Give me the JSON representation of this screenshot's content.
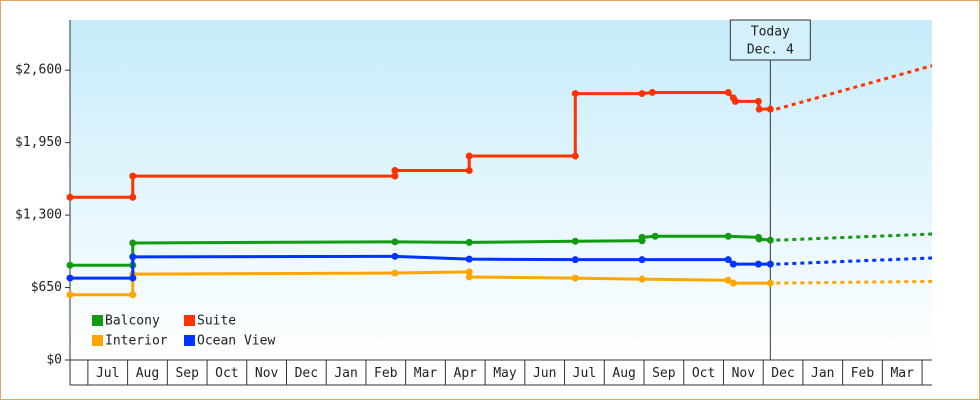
{
  "chart_data": {
    "type": "line",
    "xticks": [
      {
        "value": 0.5,
        "label": "Jul"
      },
      {
        "value": 1.5,
        "label": "Aug"
      },
      {
        "value": 2.5,
        "label": "Sep"
      },
      {
        "value": 3.5,
        "label": "Oct"
      },
      {
        "value": 4.5,
        "label": "Nov"
      },
      {
        "value": 5.5,
        "label": "Dec"
      },
      {
        "value": 6.5,
        "label": "Jan"
      },
      {
        "value": 7.5,
        "label": "Feb"
      },
      {
        "value": 8.5,
        "label": "Mar"
      },
      {
        "value": 9.5,
        "label": "Apr"
      },
      {
        "value": 10.5,
        "label": "May"
      },
      {
        "value": 11.5,
        "label": "Jun"
      },
      {
        "value": 12.5,
        "label": "Jul"
      },
      {
        "value": 13.5,
        "label": "Aug"
      },
      {
        "value": 14.5,
        "label": "Sep"
      },
      {
        "value": 15.5,
        "label": "Oct"
      },
      {
        "value": 16.5,
        "label": "Nov"
      },
      {
        "value": 17.5,
        "label": "Dec"
      },
      {
        "value": 18.5,
        "label": "Jan"
      },
      {
        "value": 19.5,
        "label": "Feb"
      },
      {
        "value": 20.5,
        "label": "Mar"
      }
    ],
    "xlim": [
      -0.45,
      21.25
    ],
    "ylim": [
      0,
      3050
    ],
    "yticks": [
      {
        "value": 0,
        "label": "$0"
      },
      {
        "value": 650,
        "label": "$650"
      },
      {
        "value": 1300,
        "label": "$1,300"
      },
      {
        "value": 1950,
        "label": "$1,950"
      },
      {
        "value": 2600,
        "label": "$2,600"
      }
    ],
    "annotations": [
      "Today",
      "Dec. 4"
    ],
    "today_x": 17.18,
    "legend": "lower left",
    "series": [
      {
        "name": "Balcony",
        "color": "#139a13",
        "x": [
          -0.45,
          1.13,
          1.13,
          7.73,
          9.6,
          12.27,
          13.95,
          13.95,
          14.28,
          16.12,
          16.88,
          16.9,
          17.18
        ],
        "values": [
          850,
          850,
          1050,
          1060,
          1055,
          1065,
          1070,
          1100,
          1110,
          1110,
          1100,
          1085,
          1075
        ],
        "forecast_x": [
          21.25
        ],
        "forecast_values": [
          1130
        ]
      },
      {
        "name": "Suite",
        "color": "#ff3300",
        "x": [
          -0.45,
          1.13,
          1.13,
          7.73,
          7.73,
          9.6,
          9.6,
          12.27,
          12.27,
          13.95,
          14.21,
          16.12,
          16.25,
          16.3,
          16.88,
          16.9,
          17.18
        ],
        "values": [
          1460,
          1460,
          1650,
          1650,
          1700,
          1700,
          1830,
          1830,
          2390,
          2390,
          2400,
          2400,
          2350,
          2320,
          2320,
          2250,
          2250
        ],
        "forecast_x": [
          21.25
        ],
        "forecast_values": [
          2640
        ]
      },
      {
        "name": "Interior",
        "color": "#ffa500",
        "x": [
          -0.45,
          1.13,
          1.13,
          7.73,
          9.6,
          9.6,
          12.27,
          13.95,
          16.12,
          16.25,
          17.18
        ],
        "values": [
          585,
          585,
          770,
          780,
          790,
          745,
          735,
          725,
          715,
          690,
          690
        ],
        "forecast_x": [
          21.25
        ],
        "forecast_values": [
          705
        ]
      },
      {
        "name": "Ocean View",
        "color": "#0033ff",
        "x": [
          -0.45,
          1.13,
          1.13,
          7.73,
          9.6,
          12.27,
          13.95,
          16.12,
          16.25,
          16.88,
          17.18
        ],
        "values": [
          735,
          735,
          925,
          930,
          905,
          900,
          900,
          900,
          860,
          860,
          860
        ],
        "forecast_x": [
          21.25
        ],
        "forecast_values": [
          915
        ]
      }
    ]
  }
}
